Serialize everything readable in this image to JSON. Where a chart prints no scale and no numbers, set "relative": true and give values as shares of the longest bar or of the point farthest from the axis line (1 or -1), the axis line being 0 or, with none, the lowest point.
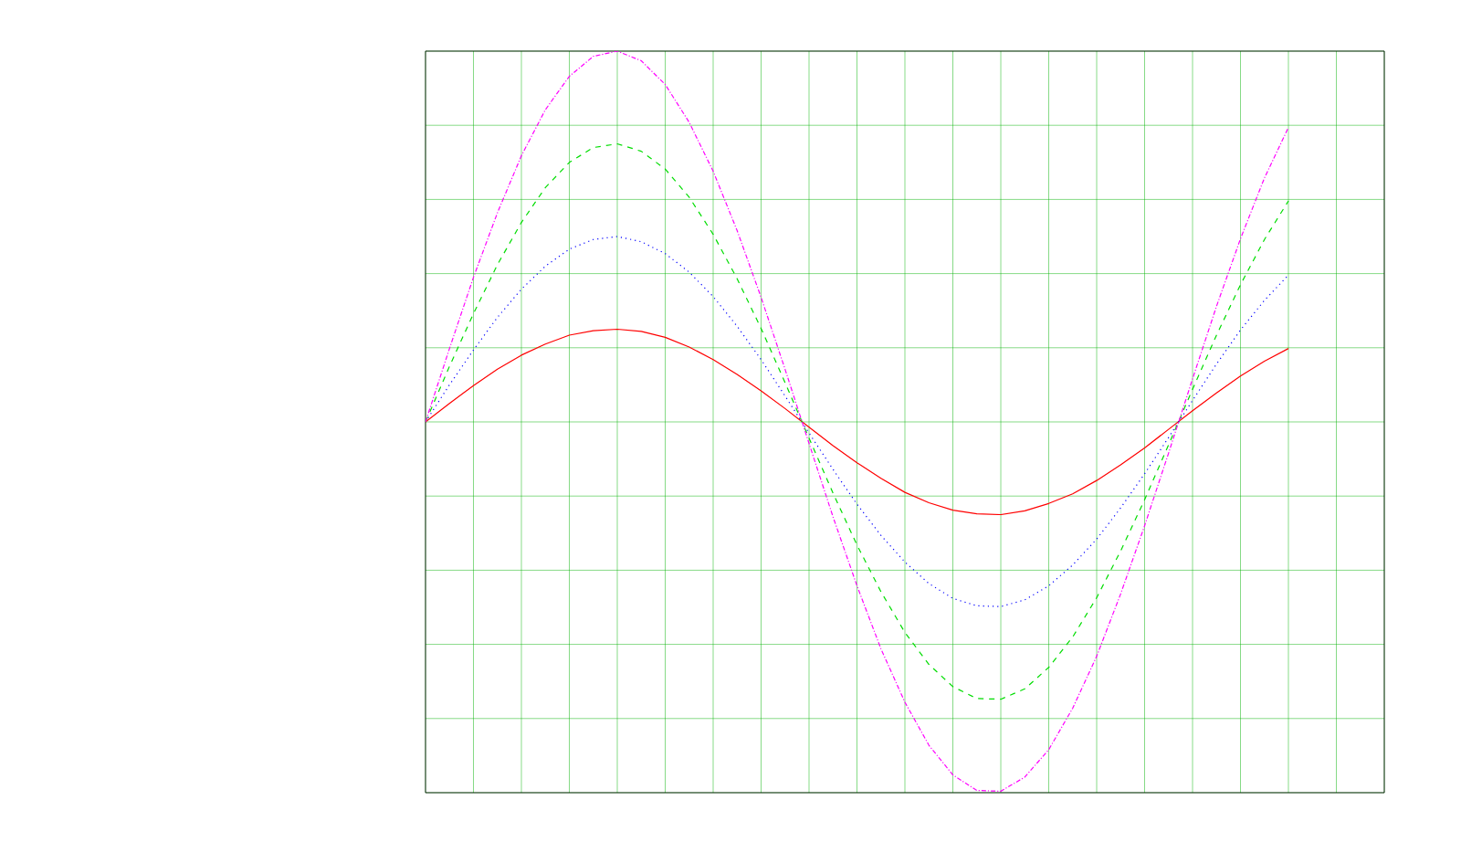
{
  "chart_data": {
    "type": "line",
    "relative": true,
    "grid": true,
    "marker": "none",
    "categories": [
      null,
      null,
      null,
      null,
      null,
      null,
      null,
      null,
      null,
      null,
      null,
      null,
      null,
      null,
      null,
      null,
      null,
      null,
      null,
      null,
      null,
      null,
      null,
      null,
      null,
      null,
      null,
      null,
      null,
      null,
      null,
      null,
      null,
      null,
      null,
      null,
      null,
      null,
      null,
      null,
      null
    ],
    "series": [
      {
        "color": "#ff0000",
        "line_style": "solid",
        "values": [
          0.5,
          0.525,
          0.549,
          0.571,
          0.59,
          0.605,
          0.617,
          0.623,
          0.625,
          0.622,
          0.614,
          0.601,
          0.584,
          0.564,
          0.542,
          0.518,
          0.493,
          0.468,
          0.445,
          0.424,
          0.405,
          0.391,
          0.381,
          0.376,
          0.375,
          0.38,
          0.39,
          0.403,
          0.421,
          0.442,
          0.465,
          0.49,
          0.515,
          0.539,
          0.562,
          0.582,
          0.599,
          null,
          null,
          null,
          null
        ]
      },
      {
        "color": "#0000ff",
        "line_style": "dotted",
        "values": [
          0.5,
          0.55,
          0.597,
          0.641,
          0.679,
          0.71,
          0.733,
          0.746,
          0.75,
          0.743,
          0.727,
          0.702,
          0.669,
          0.629,
          0.584,
          0.535,
          0.485,
          0.436,
          0.389,
          0.347,
          0.311,
          0.282,
          0.262,
          0.252,
          0.251,
          0.26,
          0.279,
          0.307,
          0.342,
          0.384,
          0.43,
          0.479,
          0.529,
          0.578,
          0.624,
          0.664,
          0.698,
          null,
          null,
          null,
          null
        ]
      },
      {
        "color": "#00dd00",
        "line_style": "dashed",
        "values": [
          0.5,
          0.575,
          0.646,
          0.712,
          0.769,
          0.816,
          0.85,
          0.87,
          0.875,
          0.865,
          0.841,
          0.803,
          0.753,
          0.693,
          0.626,
          0.553,
          0.478,
          0.404,
          0.334,
          0.271,
          0.216,
          0.173,
          0.143,
          0.127,
          0.126,
          0.14,
          0.169,
          0.21,
          0.263,
          0.326,
          0.395,
          0.469,
          0.544,
          0.617,
          0.685,
          0.746,
          0.798,
          null,
          null,
          null,
          null
        ]
      },
      {
        "color": "#ff00ff",
        "line_style": "dashdot",
        "values": [
          0.5,
          0.599,
          0.695,
          0.782,
          0.859,
          0.921,
          0.966,
          0.993,
          1,
          0.987,
          0.955,
          0.904,
          0.838,
          0.758,
          0.668,
          0.571,
          0.471,
          0.372,
          0.279,
          0.194,
          0.122,
          0.064,
          0.024,
          0.003,
          0.002,
          0.021,
          0.058,
          0.114,
          0.184,
          0.268,
          0.36,
          0.458,
          0.558,
          0.656,
          0.747,
          0.829,
          0.897,
          null,
          null,
          null,
          null
        ]
      }
    ]
  }
}
